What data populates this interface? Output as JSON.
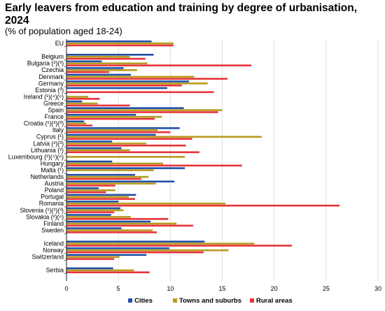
{
  "title": "Early leavers from education and training by degree of urbanisation, 2024",
  "subtitle": "(% of population aged 18-24)",
  "colors": {
    "cities": "#1f4fa8",
    "towns": "#b89a20",
    "rural": "#e8333a"
  },
  "chart_data": {
    "type": "bar",
    "orientation": "horizontal",
    "title": "Early leavers from education and training by degree of urbanisation, 2024",
    "subtitle": "(% of population aged 18-24)",
    "xlabel": "",
    "ylabel": "",
    "xlim": [
      0,
      30
    ],
    "xticks": [
      "0",
      "5",
      "10",
      "15",
      "20",
      "25",
      "30"
    ],
    "grid": true,
    "legend_position": "bottom",
    "categories": [
      "EU",
      "Belgium",
      "Bulgaria (²)(³)",
      "Czechia",
      "Denmark",
      "Germany",
      "Estonia (³)",
      "Ireland (¹)(⁴)(⁶)",
      "Greece",
      "Spain",
      "France",
      "Croatia (¹)(²)(³)",
      "Italy",
      "Cyprus (¹)",
      "Latvia (²)(³)",
      "Lithuania (²)",
      "Luxembourg (²)(⁴)(⁶)",
      "Hungary",
      "Malta (¹)",
      "Netherlands",
      "Austria",
      "Poland",
      "Portugal",
      "Romania",
      "Slovenia (¹)(²)(³)",
      "Slovakia (²)(⁶)",
      "Finland",
      "Sweden",
      "Iceland",
      "Norway",
      "Switzerland",
      "Serbia"
    ],
    "series": [
      {
        "name": "Cities",
        "values": [
          8.2,
          8.4,
          3.4,
          5.5,
          6.2,
          11.8,
          9.7,
          null,
          1.5,
          11.3,
          6.7,
          1.7,
          10.9,
          8.6,
          4.4,
          5.3,
          null,
          4.4,
          11.4,
          6.6,
          10.4,
          3.1,
          6.7,
          5.0,
          5.2,
          4.3,
          8.1,
          5.3,
          13.3,
          9.9,
          7.7,
          4.5
        ]
      },
      {
        "name": "Towns and suburbs",
        "values": [
          10.3,
          6.1,
          7.8,
          6.8,
          12.3,
          13.6,
          null,
          2.1,
          3.0,
          15.0,
          9.2,
          1.9,
          8.8,
          18.8,
          7.7,
          6.1,
          11.4,
          9.3,
          8.4,
          7.9,
          8.6,
          4.7,
          6.0,
          15.3,
          5.5,
          6.2,
          10.6,
          8.3,
          18.1,
          15.6,
          5.1,
          6.5
        ]
      },
      {
        "name": "Rural areas",
        "values": [
          10.3,
          7.6,
          17.8,
          4.1,
          15.5,
          11.1,
          14.2,
          3.2,
          6.1,
          14.6,
          8.5,
          2.5,
          10.0,
          12.1,
          11.5,
          12.8,
          null,
          16.9,
          null,
          7.2,
          4.7,
          3.8,
          6.6,
          26.3,
          4.6,
          9.8,
          12.2,
          8.7,
          21.7,
          13.2,
          4.6,
          8.0
        ]
      }
    ]
  }
}
